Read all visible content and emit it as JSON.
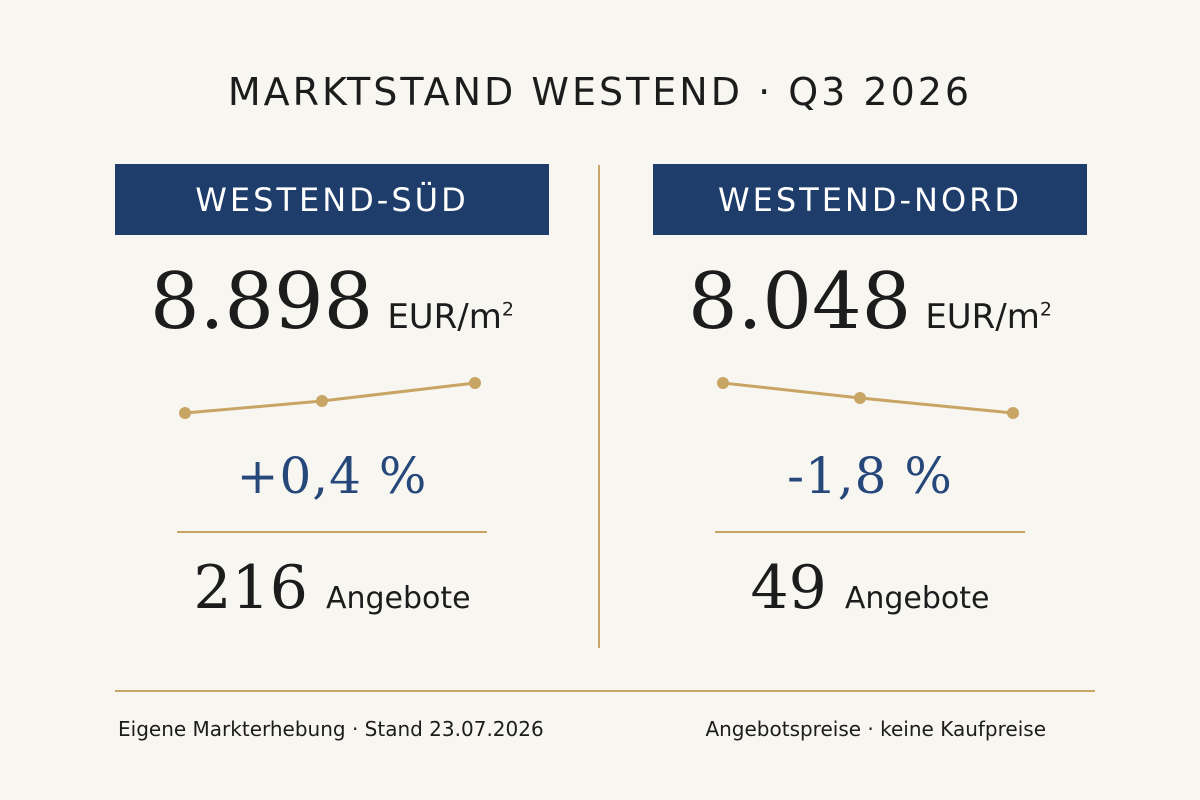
{
  "title": "MARKTSTAND WESTEND · Q3 2026",
  "colors": {
    "background": "#f8f6f1",
    "header_bg": "#1e3d6b",
    "accent_gold": "#c8a565",
    "delta_blue": "#25477a"
  },
  "panels": [
    {
      "name": "WESTEND-SÜD",
      "price": "8.898",
      "unit": "EUR/m",
      "unit_exp": "2",
      "trend": [
        0,
        0.4,
        1
      ],
      "delta": "+0,4 %",
      "offers_count": "216",
      "offers_label": "Angebote"
    },
    {
      "name": "WESTEND-NORD",
      "price": "8.048",
      "unit": "EUR/m",
      "unit_exp": "2",
      "trend": [
        1,
        0.5,
        0
      ],
      "delta": "-1,8 %",
      "offers_count": "49",
      "offers_label": "Angebote"
    }
  ],
  "footer": {
    "left": "Eigene Markterhebung · Stand 23.07.2026",
    "right": "Angebotspreise · keine Kaufpreise"
  }
}
